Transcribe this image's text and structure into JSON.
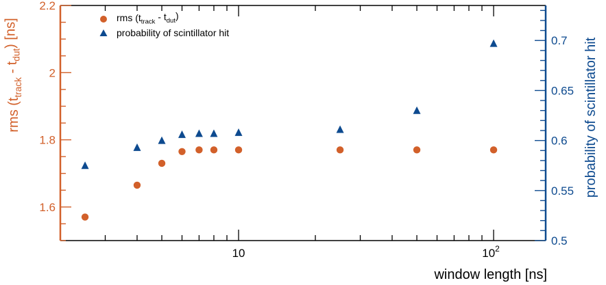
{
  "chart_data": {
    "type": "scatter",
    "xlabel": "window length [ns]",
    "x_scale": "log",
    "xlim": [
      2.0,
      160
    ],
    "x_tick_labels": [
      "10",
      "10^2"
    ],
    "left_axis": {
      "label": "rms (t_track - t_dut) [ns]",
      "label_parts": [
        "rms (t",
        "track",
        " - t",
        "dut",
        ") [ns]"
      ],
      "ylim": [
        1.5,
        2.2
      ],
      "ticks": [
        "1.6",
        "1.8",
        "2",
        "2.2"
      ],
      "color": "#d2602a"
    },
    "right_axis": {
      "label": "probability of scintillator hit",
      "ylim": [
        0.5,
        0.735
      ],
      "ticks": [
        "0.5",
        "0.55",
        "0.6",
        "0.65",
        "0.7"
      ],
      "color": "#0d4a8f"
    },
    "series": [
      {
        "name": "rms (t_track - t_dut)",
        "name_parts": [
          "rms (t",
          "track",
          " - t",
          "dut",
          ")"
        ],
        "axis": "left",
        "marker": "circle",
        "color": "#d2602a",
        "x": [
          2.5,
          4,
          5,
          6,
          7,
          8,
          10,
          25,
          50,
          100
        ],
        "y": [
          1.57,
          1.665,
          1.73,
          1.765,
          1.77,
          1.77,
          1.77,
          1.77,
          1.77,
          1.77
        ]
      },
      {
        "name": "probability of scintillator hit",
        "axis": "right",
        "marker": "triangle",
        "color": "#0d4a8f",
        "x": [
          2.5,
          4,
          5,
          6,
          7,
          8,
          10,
          25,
          50,
          100
        ],
        "y": [
          0.575,
          0.593,
          0.6,
          0.606,
          0.607,
          0.607,
          0.608,
          0.611,
          0.63,
          0.697
        ]
      }
    ],
    "legend_position": "top-left",
    "grid": false
  }
}
